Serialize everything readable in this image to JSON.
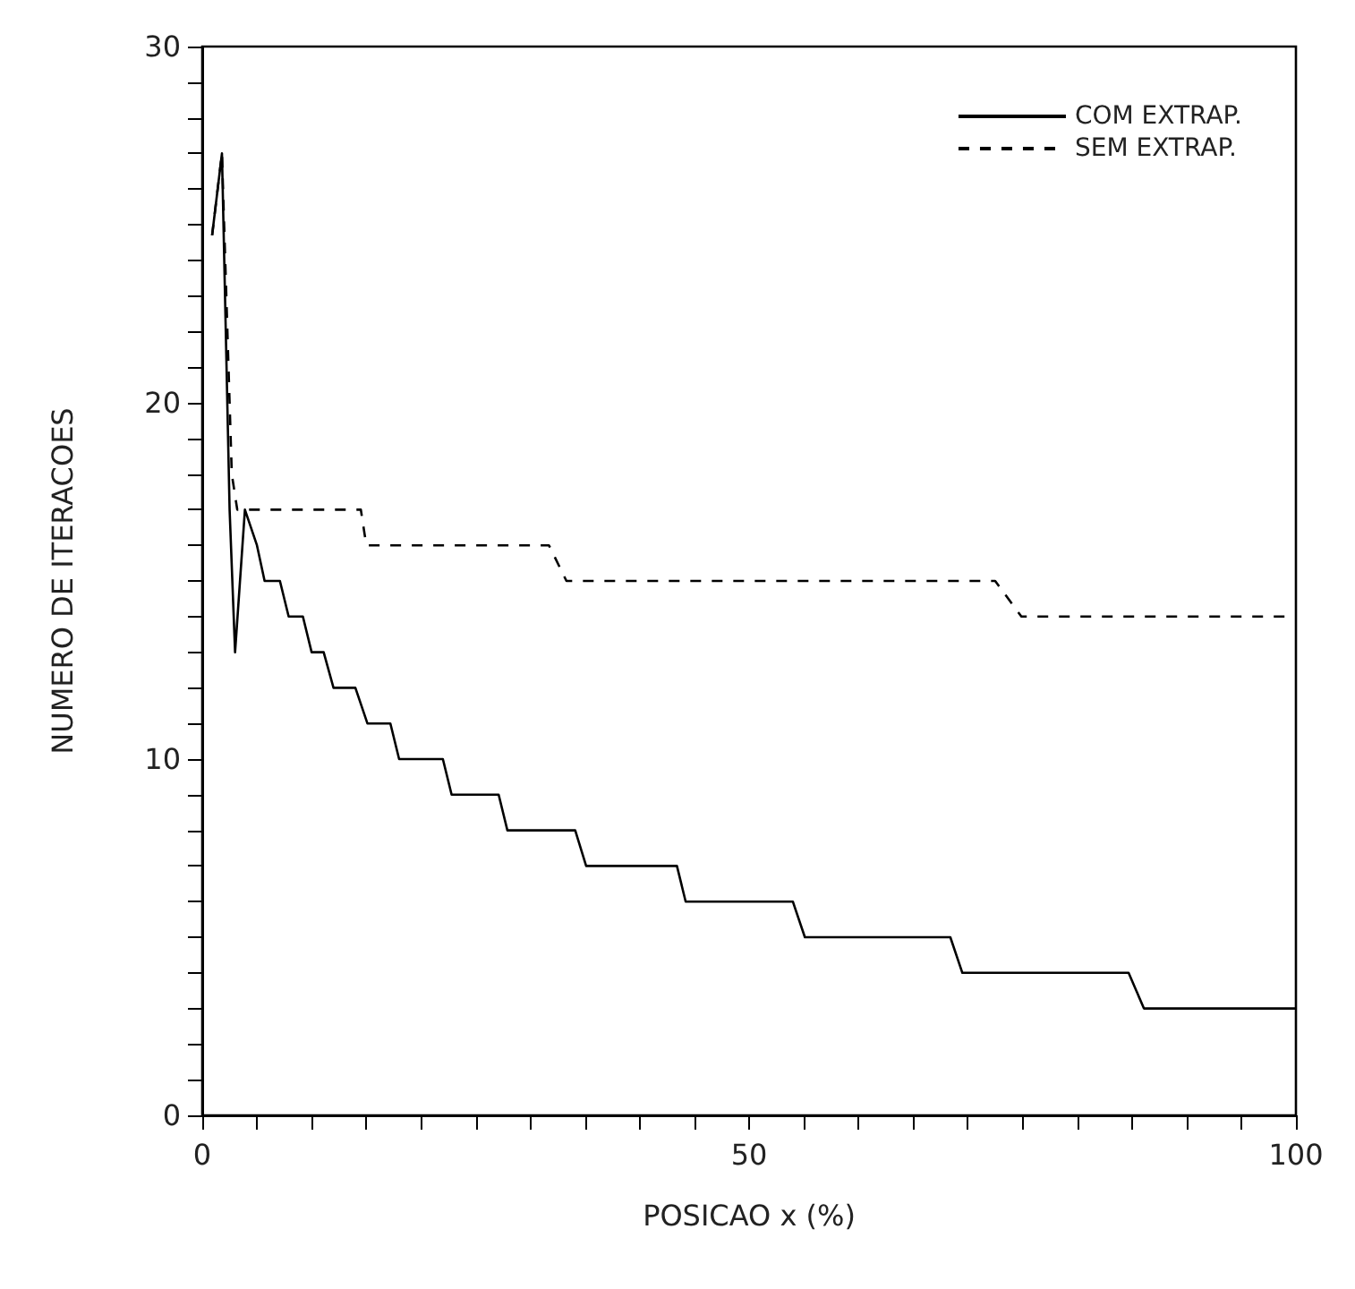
{
  "chart_data": {
    "type": "line",
    "xlabel": "POSICAO x (%)",
    "ylabel": "NUMERO DE ITERACOES",
    "xlim": [
      0,
      100
    ],
    "ylim": [
      0,
      30
    ],
    "xticks": [
      0,
      {
        "value": 5,
        "label": null
      },
      {
        "value": 10,
        "label": null
      },
      {
        "value": 15,
        "label": null
      },
      {
        "value": 20,
        "label": null
      },
      {
        "value": 25,
        "label": null
      },
      {
        "value": 30,
        "label": null
      },
      {
        "value": 35,
        "label": null
      },
      {
        "value": 40,
        "label": null
      },
      {
        "value": 45,
        "label": null
      },
      50,
      {
        "value": 55,
        "label": null
      },
      {
        "value": 60,
        "label": null
      },
      {
        "value": 65,
        "label": null
      },
      {
        "value": 70,
        "label": null
      },
      {
        "value": 75,
        "label": null
      },
      {
        "value": 80,
        "label": null
      },
      {
        "value": 85,
        "label": null
      },
      {
        "value": 90,
        "label": null
      },
      {
        "value": 95,
        "label": null
      },
      100
    ],
    "yticks": [
      0,
      {
        "value": 1,
        "label": null
      },
      {
        "value": 2,
        "label": null
      },
      {
        "value": 3,
        "label": null
      },
      {
        "value": 4,
        "label": null
      },
      {
        "value": 5,
        "label": null
      },
      {
        "value": 6,
        "label": null
      },
      {
        "value": 7,
        "label": null
      },
      {
        "value": 8,
        "label": null
      },
      {
        "value": 9,
        "label": null
      },
      10,
      {
        "value": 11,
        "label": null
      },
      {
        "value": 12,
        "label": null
      },
      {
        "value": 13,
        "label": null
      },
      {
        "value": 14,
        "label": null
      },
      {
        "value": 15,
        "label": null
      },
      {
        "value": 16,
        "label": null
      },
      {
        "value": 17,
        "label": null
      },
      {
        "value": 18,
        "label": null
      },
      {
        "value": 19,
        "label": null
      },
      20,
      {
        "value": 21,
        "label": null
      },
      {
        "value": 22,
        "label": null
      },
      {
        "value": 23,
        "label": null
      },
      {
        "value": 24,
        "label": null
      },
      {
        "value": 25,
        "label": null
      },
      {
        "value": 26,
        "label": null
      },
      {
        "value": 27,
        "label": null
      },
      {
        "value": 28,
        "label": null
      },
      {
        "value": 29,
        "label": null
      },
      30
    ],
    "grid": false,
    "legend": "top right",
    "marker": "none",
    "series": [
      {
        "name": "COM EXTRAP.",
        "color": "#000000",
        "line_style": "solid",
        "x": [
          0.9,
          1.8,
          2.5,
          3.0,
          3.9,
          5.0,
          5.7,
          7.1,
          7.9,
          9.2,
          10.0,
          11.1,
          12.0,
          14.0,
          15.1,
          17.2,
          18.0,
          22.0,
          22.8,
          27.1,
          27.9,
          34.1,
          35.1,
          43.4,
          44.2,
          54.0,
          55.1,
          68.4,
          69.5,
          84.7,
          86.1,
          100
        ],
        "values": [
          24.7,
          27,
          17,
          13,
          17,
          16,
          15,
          15,
          14,
          14,
          13,
          13,
          12,
          12,
          11,
          11,
          10,
          10,
          9,
          9,
          8,
          8,
          7,
          7,
          6,
          6,
          5,
          5,
          4,
          4,
          3,
          3
        ]
      },
      {
        "name": "SEM EXTRAP.",
        "color": "#000000",
        "line_style": "dashed",
        "x": [
          0.9,
          1.8,
          2.7,
          3.2,
          14.5,
          15.0,
          31.7,
          33.3,
          72.5,
          74.9,
          100
        ],
        "values": [
          24.7,
          27,
          18,
          17,
          17,
          16,
          16,
          15,
          15,
          14,
          14
        ]
      }
    ]
  }
}
